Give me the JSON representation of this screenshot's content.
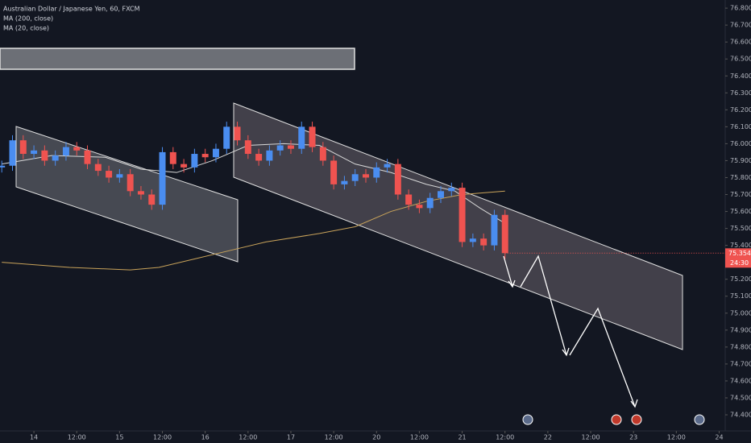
{
  "chart_data": {
    "type": "candlestick",
    "title": "Australian Dollar / Japanese Yen, 60, FXCM",
    "up_color": "#4a8df0",
    "down_color": "#ef5350",
    "x": [
      -9,
      -6,
      -3,
      0,
      3,
      6,
      9,
      12,
      15,
      18,
      21,
      24,
      27,
      30,
      33,
      36,
      39,
      42,
      45,
      48,
      51,
      54,
      57,
      60,
      63,
      66,
      69,
      72,
      75,
      78,
      81,
      84,
      87,
      90,
      93,
      96,
      99,
      102,
      105,
      108,
      111,
      114,
      117,
      120,
      123,
      126,
      129,
      132
    ],
    "open": [
      75.86,
      75.87,
      76.02,
      75.94,
      75.96,
      75.9,
      75.93,
      75.98,
      75.96,
      75.88,
      75.84,
      75.8,
      75.82,
      75.72,
      75.7,
      75.64,
      75.95,
      75.88,
      75.86,
      75.94,
      75.92,
      75.97,
      76.1,
      76.02,
      75.94,
      75.9,
      75.96,
      75.99,
      75.97,
      76.1,
      75.98,
      75.9,
      75.76,
      75.78,
      75.82,
      75.8,
      75.86,
      75.88,
      75.7,
      75.64,
      75.62,
      75.68,
      75.72,
      75.74,
      75.42,
      75.44,
      75.4,
      75.58
    ],
    "high": [
      75.9,
      76.05,
      76.05,
      75.99,
      75.99,
      75.96,
      76.01,
      76.01,
      75.99,
      75.91,
      75.87,
      75.85,
      75.85,
      75.75,
      75.73,
      75.98,
      75.98,
      75.91,
      75.97,
      75.97,
      76.0,
      76.13,
      76.13,
      76.05,
      75.97,
      75.99,
      76.02,
      76.02,
      76.13,
      76.13,
      76.01,
      75.93,
      75.81,
      75.85,
      75.85,
      75.89,
      75.91,
      75.91,
      75.73,
      75.67,
      75.71,
      75.75,
      75.77,
      75.77,
      75.47,
      75.47,
      75.61,
      75.61
    ],
    "low": [
      75.83,
      75.84,
      75.91,
      75.91,
      75.87,
      75.87,
      75.9,
      75.93,
      75.85,
      75.81,
      75.77,
      75.77,
      75.69,
      75.67,
      75.61,
      75.61,
      75.85,
      75.83,
      75.83,
      75.89,
      75.89,
      75.94,
      75.99,
      75.91,
      75.87,
      75.87,
      75.93,
      75.94,
      75.94,
      75.95,
      75.87,
      75.73,
      75.73,
      75.75,
      75.77,
      75.77,
      75.83,
      75.67,
      75.61,
      75.59,
      75.59,
      75.65,
      75.69,
      75.39,
      75.39,
      75.37,
      75.37,
      75.32
    ],
    "close": [
      75.87,
      76.02,
      75.94,
      75.96,
      75.9,
      75.93,
      75.98,
      75.96,
      75.88,
      75.84,
      75.8,
      75.82,
      75.72,
      75.7,
      75.64,
      75.95,
      75.88,
      75.86,
      75.94,
      75.92,
      75.97,
      76.1,
      76.02,
      75.94,
      75.9,
      75.96,
      75.99,
      75.97,
      76.1,
      75.98,
      75.9,
      75.76,
      75.78,
      75.82,
      75.8,
      75.86,
      75.88,
      75.7,
      75.64,
      75.62,
      75.68,
      75.72,
      75.74,
      75.42,
      75.44,
      75.4,
      75.58,
      75.354
    ],
    "series": [
      {
        "name": "MA (200, close)",
        "color": "#c9a35a",
        "x": [
          -9,
          10,
          27,
          35,
          45,
          55,
          65,
          80,
          90,
          100,
          110,
          120,
          132
        ],
        "values": [
          75.3,
          75.27,
          75.255,
          75.27,
          75.32,
          75.37,
          75.42,
          75.47,
          75.51,
          75.6,
          75.66,
          75.7,
          75.72
        ]
      },
      {
        "name": "MA (20, close)",
        "color": "#d8d8d8",
        "x": [
          -9,
          5,
          20,
          30,
          40,
          50,
          60,
          70,
          80,
          90,
          100,
          110,
          118,
          125,
          132
        ],
        "values": [
          75.88,
          75.93,
          75.92,
          75.85,
          75.83,
          75.9,
          75.99,
          76.0,
          75.99,
          75.88,
          75.83,
          75.76,
          75.72,
          75.62,
          75.53
        ]
      }
    ],
    "countdown": "24:30",
    "xlim": [
      -9.5,
      193.7
    ],
    "xticks": [
      {
        "value": 0,
        "label": "14"
      },
      {
        "value": 12,
        "label": "12:00"
      },
      {
        "value": 24,
        "label": "15"
      },
      {
        "value": 36,
        "label": "12:00"
      },
      {
        "value": 48,
        "label": "16"
      },
      {
        "value": 60,
        "label": "12:00"
      },
      {
        "value": 72,
        "label": "17"
      },
      {
        "value": 84,
        "label": "12:00"
      },
      {
        "value": 96,
        "label": "20"
      },
      {
        "value": 108,
        "label": "12:00"
      },
      {
        "value": 120,
        "label": "21"
      },
      {
        "value": 132,
        "label": "12:00"
      },
      {
        "value": 144,
        "label": "22"
      },
      {
        "value": 156,
        "label": "12:00"
      },
      {
        "value": 168,
        "label": "23"
      },
      {
        "value": 180,
        "label": "12:00"
      },
      {
        "value": 192,
        "label": "24"
      }
    ],
    "ylim": [
      74.305,
      76.848
    ],
    "yticks": [
      {
        "value": 76.8,
        "label": "76.800"
      },
      {
        "value": 76.7,
        "label": "76.700"
      },
      {
        "value": 76.6,
        "label": "76.600"
      },
      {
        "value": 76.5,
        "label": "76.500"
      },
      {
        "value": 76.4,
        "label": "76.400"
      },
      {
        "value": 76.3,
        "label": "76.300"
      },
      {
        "value": 76.2,
        "label": "76.200"
      },
      {
        "value": 76.1,
        "label": "76.100"
      },
      {
        "value": 76.0,
        "label": "76.000"
      },
      {
        "value": 75.9,
        "label": "75.900"
      },
      {
        "value": 75.8,
        "label": "75.800"
      },
      {
        "value": 75.7,
        "label": "75.700"
      },
      {
        "value": 75.6,
        "label": "75.600"
      },
      {
        "value": 75.5,
        "label": "75.500"
      },
      {
        "value": 75.4,
        "label": "75.400"
      },
      {
        "value": 75.3,
        "label": "75.300"
      },
      {
        "value": 75.2,
        "label": "75.200"
      },
      {
        "value": 75.1,
        "label": "75.100"
      },
      {
        "value": 75.0,
        "label": "75.000"
      },
      {
        "value": 74.9,
        "label": "74.900"
      },
      {
        "value": 74.8,
        "label": "74.800"
      },
      {
        "value": 74.7,
        "label": "74.700"
      },
      {
        "value": 74.6,
        "label": "74.600"
      },
      {
        "value": 74.5,
        "label": "74.500"
      },
      {
        "value": 74.4,
        "label": "74.400"
      }
    ],
    "grid": false
  }
}
